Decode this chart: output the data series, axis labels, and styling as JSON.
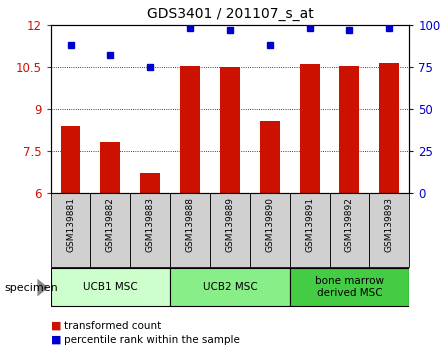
{
  "title": "GDS3401 / 201107_s_at",
  "samples": [
    "GSM139881",
    "GSM139882",
    "GSM139883",
    "GSM139888",
    "GSM139889",
    "GSM139890",
    "GSM139891",
    "GSM139892",
    "GSM139893"
  ],
  "bar_values": [
    8.4,
    7.8,
    6.7,
    10.53,
    10.5,
    8.55,
    10.6,
    10.53,
    10.65
  ],
  "scatter_values": [
    88,
    82,
    75,
    98,
    97,
    88,
    98,
    97,
    98
  ],
  "bar_color": "#cc1100",
  "scatter_color": "#0000cc",
  "ylim_left": [
    6,
    12
  ],
  "ylim_right": [
    0,
    100
  ],
  "yticks_left": [
    6,
    7.5,
    9,
    10.5,
    12
  ],
  "yticks_right": [
    0,
    25,
    50,
    75,
    100
  ],
  "groups": [
    {
      "label": "UCB1 MSC",
      "indices": [
        0,
        1,
        2
      ],
      "color": "#ccffcc"
    },
    {
      "label": "UCB2 MSC",
      "indices": [
        3,
        4,
        5
      ],
      "color": "#88ee88"
    },
    {
      "label": "bone marrow\nderived MSC",
      "indices": [
        6,
        7,
        8
      ],
      "color": "#44cc44"
    }
  ],
  "specimen_label": "specimen",
  "legend_bar_label": "transformed count",
  "legend_scatter_label": "percentile rank within the sample",
  "plot_bg_color": "#ffffff",
  "tick_area_color": "#c8c8c8",
  "bar_width": 0.5
}
